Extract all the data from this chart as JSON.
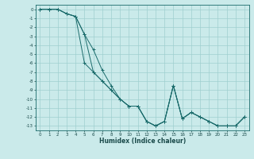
{
  "xlabel": "Humidex (Indice chaleur)",
  "background_color": "#caeaea",
  "grid_color": "#9fcfcf",
  "line_color": "#1a6b6b",
  "xlim": [
    -0.5,
    23.5
  ],
  "ylim": [
    -13.5,
    0.5
  ],
  "xticks": [
    0,
    1,
    2,
    3,
    4,
    5,
    6,
    7,
    8,
    9,
    10,
    11,
    12,
    13,
    14,
    15,
    16,
    17,
    18,
    19,
    20,
    21,
    22,
    23
  ],
  "yticks": [
    0,
    -1,
    -2,
    -3,
    -4,
    -5,
    -6,
    -7,
    -8,
    -9,
    -10,
    -11,
    -12,
    -13
  ],
  "series_x": [
    [
      0,
      1,
      2,
      3,
      4,
      5,
      6,
      7,
      8,
      9,
      10,
      11,
      12,
      13,
      14,
      15,
      16,
      17,
      18,
      19,
      20,
      21,
      22,
      23
    ],
    [
      0,
      1,
      2,
      3,
      4,
      5,
      6,
      7,
      8,
      9,
      10,
      11,
      12,
      13,
      14,
      15,
      16,
      17,
      18,
      19,
      20,
      21,
      22,
      23
    ],
    [
      0,
      1,
      2,
      3,
      4,
      5,
      6,
      7,
      8,
      9,
      10,
      11,
      12,
      13,
      14,
      15,
      16,
      17,
      18,
      19,
      20,
      21,
      22,
      23
    ]
  ],
  "series_y": [
    [
      0,
      0,
      0,
      -0.5,
      -0.8,
      -6.0,
      -7.0,
      -8.0,
      -9.0,
      -10.0,
      -10.8,
      -10.8,
      -12.5,
      -13.0,
      -12.5,
      -8.5,
      -12.2,
      -11.5,
      -12.0,
      -12.5,
      -13.0,
      -13.0,
      -13.0,
      -12.0
    ],
    [
      0,
      0,
      0,
      -0.5,
      -0.8,
      -2.8,
      -7.0,
      -8.0,
      -9.0,
      -10.0,
      -10.8,
      -10.8,
      -12.5,
      -13.0,
      -12.5,
      -8.5,
      -12.2,
      -11.5,
      -12.0,
      -12.5,
      -13.0,
      -13.0,
      -13.0,
      -12.0
    ],
    [
      0,
      0,
      0,
      -0.5,
      -0.8,
      -2.8,
      -4.5,
      -6.8,
      -8.5,
      -10.0,
      -10.8,
      -10.8,
      -12.5,
      -13.0,
      -12.5,
      -8.5,
      -12.2,
      -11.5,
      -12.0,
      -12.5,
      -13.0,
      -13.0,
      -13.0,
      -12.0
    ]
  ]
}
